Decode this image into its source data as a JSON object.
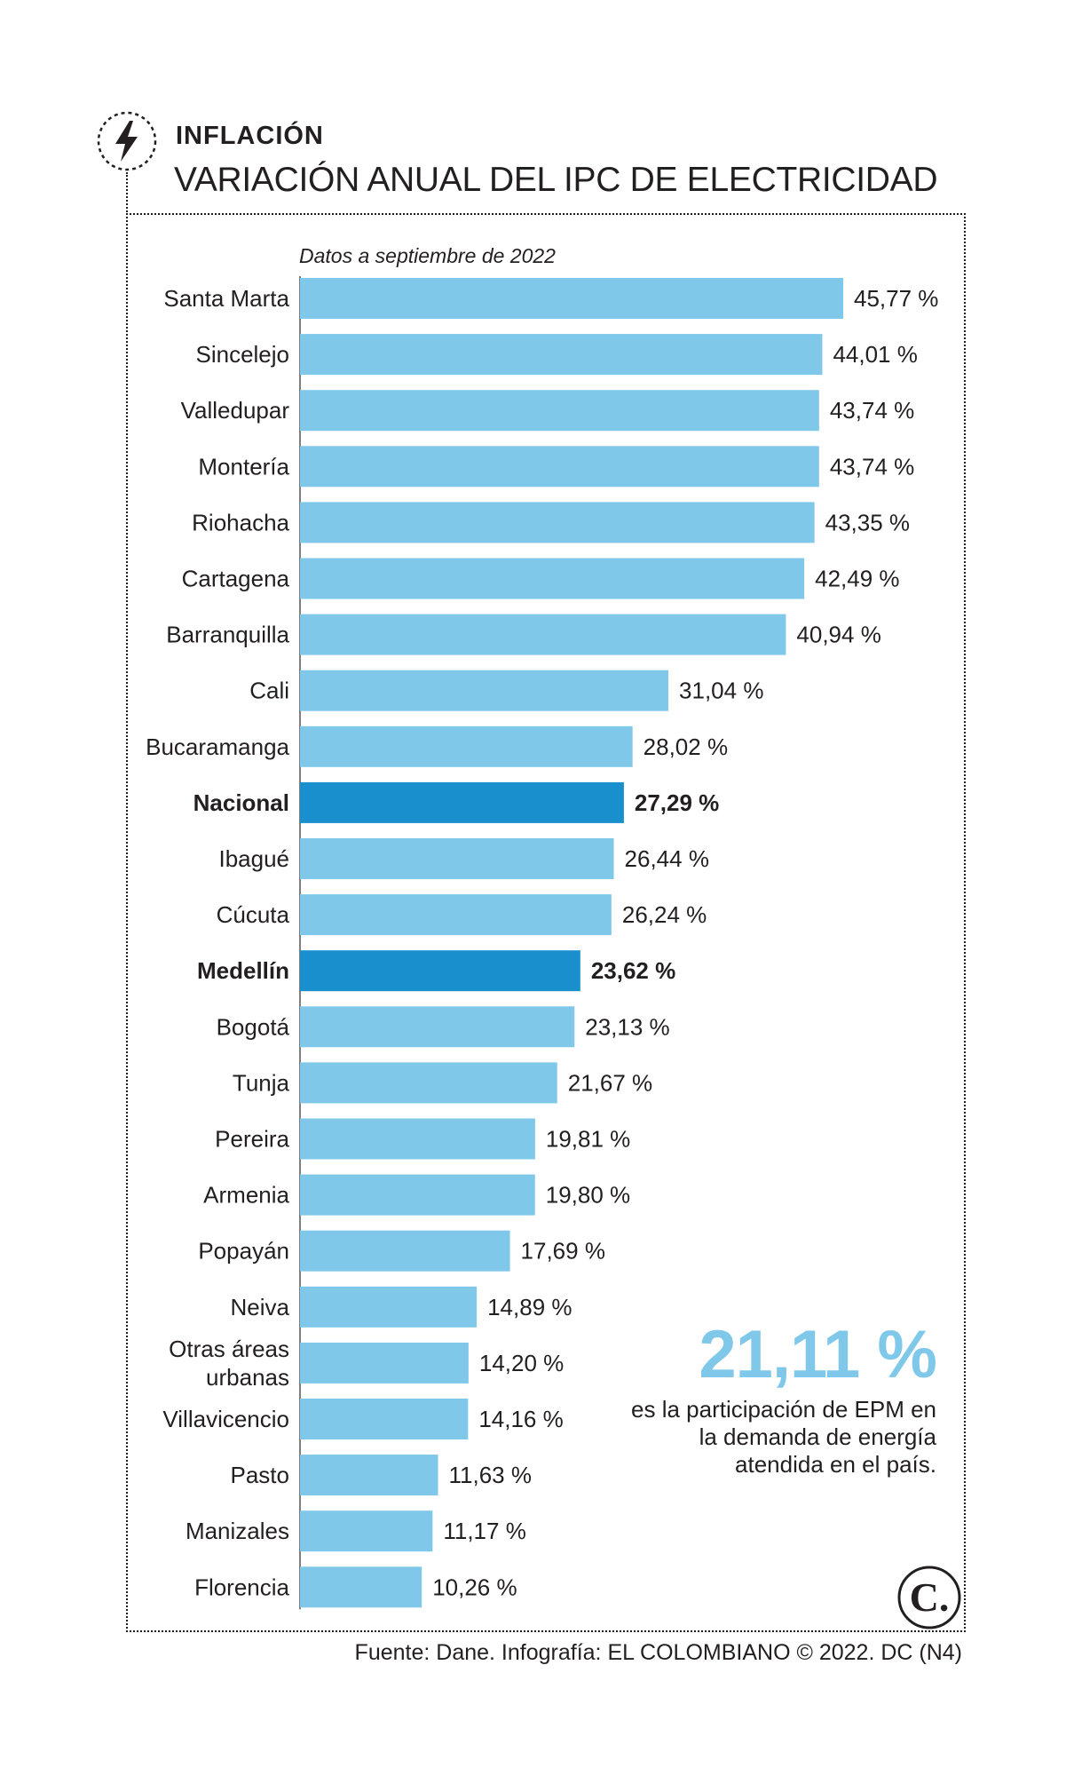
{
  "header": {
    "kicker": "INFLACIÓN",
    "title": "VARIACIÓN ANUAL DEL IPC DE ELECTRICIDAD",
    "note": "Datos a septiembre de 2022",
    "icon": "lightning-bolt-icon"
  },
  "chart_data": {
    "type": "bar",
    "orientation": "horizontal",
    "categories": [
      "Santa Marta",
      "Sincelejo",
      "Valledupar",
      "Montería",
      "Riohacha",
      "Cartagena",
      "Barranquilla",
      "Cali",
      "Bucaramanga",
      "Nacional",
      "Ibagué",
      "Cúcuta",
      "Medellín",
      "Bogotá",
      "Tunja",
      "Pereira",
      "Armenia",
      "Popayán",
      "Neiva",
      "Otras áreas urbanas",
      "Villavicencio",
      "Pasto",
      "Manizales",
      "Florencia"
    ],
    "category_lines": [
      [
        "Santa Marta"
      ],
      [
        "Sincelejo"
      ],
      [
        "Valledupar"
      ],
      [
        "Montería"
      ],
      [
        "Riohacha"
      ],
      [
        "Cartagena"
      ],
      [
        "Barranquilla"
      ],
      [
        "Cali"
      ],
      [
        "Bucaramanga"
      ],
      [
        "Nacional"
      ],
      [
        "Ibagué"
      ],
      [
        "Cúcuta"
      ],
      [
        "Medellín"
      ],
      [
        "Bogotá"
      ],
      [
        "Tunja"
      ],
      [
        "Pereira"
      ],
      [
        "Armenia"
      ],
      [
        "Popayán"
      ],
      [
        "Neiva"
      ],
      [
        "Otras áreas",
        "urbanas"
      ],
      [
        "Villavicencio"
      ],
      [
        "Pasto"
      ],
      [
        "Manizales"
      ],
      [
        "Florencia"
      ]
    ],
    "values": [
      45.77,
      44.01,
      43.74,
      43.74,
      43.35,
      42.49,
      40.94,
      31.04,
      28.02,
      27.29,
      26.44,
      26.24,
      23.62,
      23.13,
      21.67,
      19.81,
      19.8,
      17.69,
      14.89,
      14.2,
      14.16,
      11.63,
      11.17,
      10.26
    ],
    "value_labels": [
      "45,77 %",
      "44,01 %",
      "43,74 %",
      "43,74 %",
      "43,35 %",
      "42,49 %",
      "40,94 %",
      "31,04 %",
      "28,02 %",
      "27,29 %",
      "26,44 %",
      "26,24 %",
      "23,62 %",
      "23,13 %",
      "21,67 %",
      "19,81 %",
      "19,80 %",
      "17,69 %",
      "14,89 %",
      "14,20 %",
      "14,16 %",
      "11,63 %",
      "11,17 %",
      "10,26 %"
    ],
    "highlighted": [
      "Nacional",
      "Medellín"
    ],
    "unit": "%",
    "xlim": [
      0,
      45.77
    ],
    "grid": false,
    "bar_color": "#7fc8ea",
    "highlight_color": "#1a8fcd"
  },
  "callout": {
    "value": "21,11 %",
    "text": "es la participación de EPM en la demanda de energía atendida en el país.",
    "color": "#7fc8ea"
  },
  "footer": {
    "source": "Fuente: Dane. Infografía: EL COLOMBIANO © 2022. DC (N4)",
    "logo_letter": "C.",
    "logo_icon": "el-colombiano-logo-icon"
  }
}
